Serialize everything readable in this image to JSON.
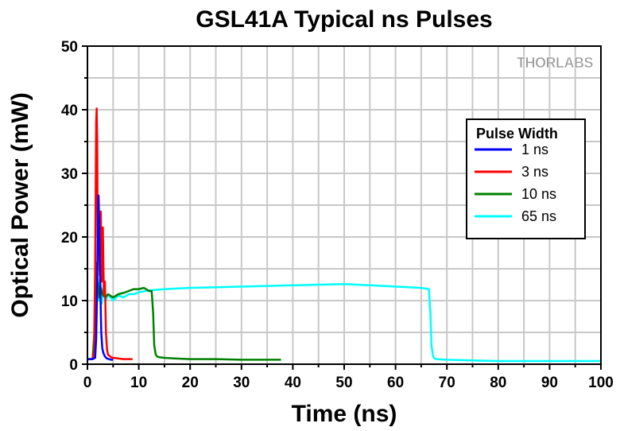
{
  "chart_data": {
    "type": "line",
    "title": "GSL41A Typical ns Pulses",
    "xlabel": "Time (ns)",
    "ylabel": "Optical Power (mW)",
    "xlim": [
      0,
      100
    ],
    "ylim": [
      0,
      50
    ],
    "x_ticks": [
      0,
      10,
      20,
      30,
      40,
      50,
      60,
      70,
      80,
      90,
      100
    ],
    "y_ticks": [
      0,
      10,
      20,
      30,
      40,
      50
    ],
    "grid": true,
    "legend": {
      "title": "Pulse Width",
      "position": "top-right"
    },
    "logo": "THORLABS",
    "series": [
      {
        "name": "1 ns",
        "color": "#0000ff",
        "x": [
          0.0,
          1.0,
          1.5,
          1.7,
          1.9,
          2.1,
          2.3,
          2.5,
          2.7,
          2.9,
          3.1,
          3.4,
          3.8,
          4.2,
          4.6,
          5.0
        ],
        "y": [
          0.8,
          0.8,
          1.0,
          4.0,
          13.0,
          26.5,
          22.0,
          12.0,
          5.0,
          2.5,
          1.8,
          1.2,
          0.9,
          0.8,
          0.7,
          0.7
        ]
      },
      {
        "name": "3 ns",
        "color": "#ff0000",
        "x": [
          0.0,
          1.0,
          1.3,
          1.5,
          1.7,
          1.8,
          1.9,
          2.0,
          2.2,
          2.4,
          2.6,
          2.8,
          3.0,
          3.2,
          3.4,
          3.6,
          3.8,
          4.0,
          4.3,
          4.6,
          5.0,
          6.0,
          7.0,
          8.0,
          8.8
        ],
        "y": [
          0.8,
          0.8,
          2.0,
          15.0,
          38.0,
          40.2,
          35.0,
          20.0,
          26.5,
          14.0,
          24.0,
          13.0,
          21.5,
          11.0,
          13.0,
          5.0,
          2.5,
          1.5,
          1.3,
          1.1,
          1.0,
          0.9,
          0.8,
          0.8,
          0.8
        ]
      },
      {
        "name": "10 ns",
        "color": "#008000",
        "x": [
          0.0,
          1.0,
          1.4,
          1.6,
          1.8,
          2.0,
          2.3,
          2.6,
          3.0,
          3.5,
          4.0,
          5.0,
          6.0,
          7.0,
          8.0,
          9.0,
          10.0,
          11.0,
          12.0,
          12.5,
          12.8,
          13.0,
          13.3,
          13.6,
          14.0,
          15.0,
          17.0,
          20.0,
          25.0,
          30.0,
          35.0,
          37.7
        ],
        "y": [
          0.8,
          0.8,
          5.0,
          16.0,
          15.5,
          13.0,
          10.5,
          12.0,
          10.8,
          10.5,
          11.0,
          10.5,
          11.0,
          11.2,
          11.5,
          11.8,
          11.8,
          12.0,
          11.5,
          11.5,
          8.0,
          3.0,
          1.5,
          1.2,
          1.1,
          1.0,
          0.9,
          0.8,
          0.8,
          0.7,
          0.7,
          0.7
        ]
      },
      {
        "name": "65 ns",
        "color": "#00ffff",
        "x": [
          0.0,
          1.0,
          1.3,
          1.6,
          1.9,
          2.2,
          2.5,
          2.8,
          3.2,
          3.6,
          4.0,
          5.0,
          6.0,
          7.0,
          8.0,
          9.0,
          10.0,
          12.0,
          15.0,
          20.0,
          25.0,
          30.0,
          35.0,
          40.0,
          45.0,
          50.0,
          55.0,
          60.0,
          65.0,
          66.5,
          66.8,
          67.0,
          67.3,
          67.6,
          68.0,
          70.0,
          75.0,
          80.0,
          85.0,
          90.0,
          95.0,
          100.0
        ],
        "y": [
          0.8,
          0.8,
          5.0,
          15.5,
          13.0,
          10.0,
          13.5,
          9.5,
          12.5,
          10.0,
          11.0,
          10.0,
          10.8,
          10.5,
          11.0,
          11.0,
          11.3,
          11.6,
          11.8,
          12.0,
          12.1,
          12.2,
          12.3,
          12.4,
          12.5,
          12.6,
          12.4,
          12.2,
          12.0,
          11.8,
          8.0,
          3.0,
          1.2,
          0.9,
          0.8,
          0.7,
          0.6,
          0.5,
          0.5,
          0.5,
          0.5,
          0.5
        ]
      }
    ]
  }
}
